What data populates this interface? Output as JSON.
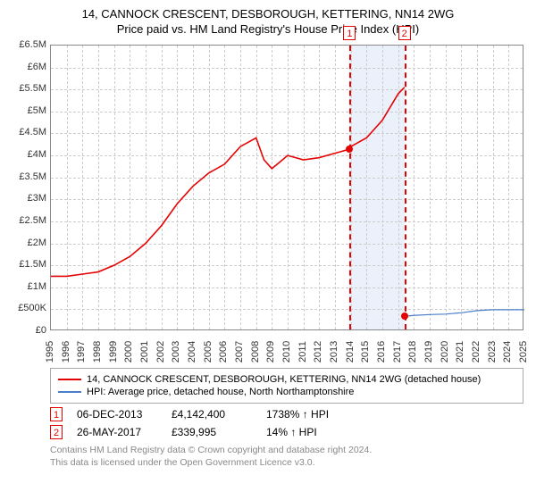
{
  "title": "14, CANNOCK CRESCENT, DESBOROUGH, KETTERING, NN14 2WG",
  "subtitle": "Price paid vs. HM Land Registry's House Price Index (HPI)",
  "chart": {
    "type": "line",
    "background_color": "#ffffff",
    "grid_color": "#cccccc",
    "border_color": "#888888",
    "y": {
      "min": 0,
      "max": 6500000,
      "tick_step": 500000,
      "ticks": [
        "£0",
        "£500K",
        "£1M",
        "£1.5M",
        "£2M",
        "£2.5M",
        "£3M",
        "£3.5M",
        "£4M",
        "£4.5M",
        "£5M",
        "£5.5M",
        "£6M",
        "£6.5M"
      ],
      "label_fontsize": 11
    },
    "x": {
      "min": 1995,
      "max": 2025,
      "tick_step": 1,
      "ticks": [
        "1995",
        "1996",
        "1997",
        "1998",
        "1999",
        "2000",
        "2001",
        "2002",
        "2003",
        "2004",
        "2005",
        "2006",
        "2007",
        "2008",
        "2009",
        "2010",
        "2011",
        "2012",
        "2013",
        "2014",
        "2015",
        "2016",
        "2017",
        "2018",
        "2019",
        "2020",
        "2021",
        "2022",
        "2023",
        "2024",
        "2025"
      ],
      "label_fontsize": 11
    },
    "series": [
      {
        "name": "14, CANNOCK CRESCENT, DESBOROUGH, KETTERING, NN14 2WG (detached house)",
        "color": "#e40303",
        "line_width": 1.6,
        "points": [
          [
            1995,
            1250000
          ],
          [
            1996,
            1250000
          ],
          [
            1997,
            1300000
          ],
          [
            1998,
            1350000
          ],
          [
            1999,
            1500000
          ],
          [
            2000,
            1700000
          ],
          [
            2001,
            2000000
          ],
          [
            2002,
            2400000
          ],
          [
            2003,
            2900000
          ],
          [
            2004,
            3300000
          ],
          [
            2005,
            3600000
          ],
          [
            2006,
            3800000
          ],
          [
            2007,
            4200000
          ],
          [
            2008,
            4400000
          ],
          [
            2008.5,
            3900000
          ],
          [
            2009,
            3700000
          ],
          [
            2010,
            4000000
          ],
          [
            2011,
            3900000
          ],
          [
            2012,
            3950000
          ],
          [
            2013,
            4050000
          ],
          [
            2013.93,
            4142400
          ],
          [
            2014,
            4200000
          ],
          [
            2015,
            4400000
          ],
          [
            2016,
            4800000
          ],
          [
            2017,
            5400000
          ],
          [
            2017.4,
            5550000
          ]
        ]
      },
      {
        "name": "HPI: Average price, detached house, North Northamptonshire",
        "color": "#4a7ec9",
        "line_width": 1.2,
        "points": [
          [
            2017.4,
            340000
          ],
          [
            2018,
            360000
          ],
          [
            2019,
            380000
          ],
          [
            2020,
            390000
          ],
          [
            2021,
            420000
          ],
          [
            2022,
            470000
          ],
          [
            2023,
            490000
          ],
          [
            2024,
            490000
          ],
          [
            2025,
            490000
          ]
        ]
      }
    ],
    "highlight": {
      "from": 2013.93,
      "to": 2017.4,
      "color": "#eaf1fb"
    },
    "vlines": [
      {
        "x": 2013.93,
        "color": "#e40303",
        "dash": true
      },
      {
        "x": 2017.4,
        "color": "#e40303",
        "dash": true
      }
    ],
    "markers": [
      {
        "n": "1",
        "x": 2013.93,
        "y": 4142400
      },
      {
        "n": "2",
        "x": 2017.4,
        "y": 339995
      }
    ],
    "marker_box_color": "#e40303"
  },
  "legend": {
    "items": [
      {
        "color": "#e40303",
        "label": "14, CANNOCK CRESCENT, DESBOROUGH, KETTERING, NN14 2WG (detached house)"
      },
      {
        "color": "#4a7ec9",
        "label": "HPI: Average price, detached house, North Northamptonshire"
      }
    ],
    "fontsize": 11
  },
  "trades": [
    {
      "n": "1",
      "date": "06-DEC-2013",
      "price": "£4,142,400",
      "hpi": "1738% ↑ HPI"
    },
    {
      "n": "2",
      "date": "26-MAY-2017",
      "price": "£339,995",
      "hpi": "14% ↑ HPI"
    }
  ],
  "footer": {
    "line1": "Contains HM Land Registry data © Crown copyright and database right 2024.",
    "line2": "This data is licensed under the Open Government Licence v3.0."
  }
}
